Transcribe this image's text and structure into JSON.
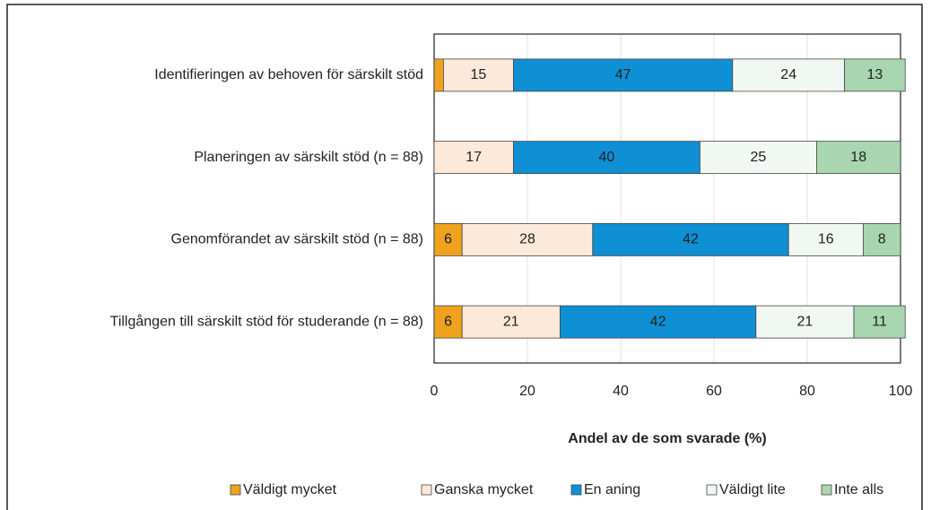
{
  "chart_data": {
    "type": "stacked-bar-horizontal",
    "categories": [
      "Identifieringen av behoven för särskilt stöd",
      "Planeringen av särskilt stöd (n = 88)",
      "Genomförandet av särskilt stöd (n = 88)",
      "Tillgången till särskilt stöd för studerande  (n = 88)"
    ],
    "series": [
      {
        "name": "Väldigt mycket",
        "color": "#f0a21f",
        "values": [
          2,
          0,
          6,
          6
        ],
        "value_labels": [
          null,
          null,
          "6",
          "6"
        ]
      },
      {
        "name": "Ganska mycket",
        "color": "#fde9d9",
        "values": [
          15,
          17,
          28,
          21
        ],
        "value_labels": [
          "15",
          "17",
          "28",
          "21"
        ]
      },
      {
        "name": "En aning",
        "color": "#0f8fd4",
        "values": [
          47,
          40,
          42,
          42
        ],
        "value_labels": [
          "47",
          "40",
          "42",
          "42"
        ]
      },
      {
        "name": "Väldigt lite",
        "color": "#f1f7f2",
        "values": [
          24,
          25,
          16,
          21
        ],
        "value_labels": [
          "24",
          "25",
          "16",
          "21"
        ]
      },
      {
        "name": "Inte alls",
        "color": "#a9d5b0",
        "values": [
          13,
          18,
          8,
          11
        ],
        "value_labels": [
          "13",
          "18",
          "8",
          "11"
        ]
      }
    ],
    "x_label": "Andel av de som svarade (%)",
    "xlim": [
      0,
      100
    ],
    "xticks": [
      0,
      20,
      40,
      60,
      80,
      100
    ],
    "grid": true,
    "legend": "bottom"
  }
}
